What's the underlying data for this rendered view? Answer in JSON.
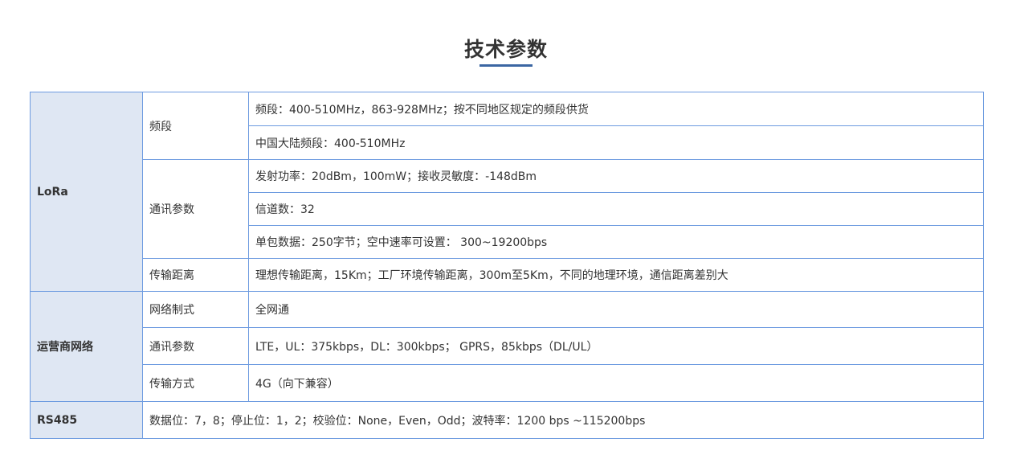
{
  "title": "技术参数",
  "colors": {
    "border": "#6d9be0",
    "category_bg": "#dfe7f3",
    "underline": "#3b66a3"
  },
  "lora": {
    "category": "LoRa",
    "band": {
      "label": "频段",
      "values": [
        "频段：400-510MHz，863-928MHz；按不同地区规定的频段供货",
        "中国大陆频段：400-510MHz"
      ]
    },
    "comm": {
      "label": "通讯参数",
      "values": [
        "发射功率：20dBm，100mW；接收灵敏度：-148dBm",
        "信道数：32",
        "单包数据：250字节；空中速率可设置： 300~19200bps"
      ]
    },
    "distance": {
      "label": "传输距离",
      "value": "理想传输距离，15Km；工厂环境传输距离，300m至5Km，不同的地理环境，通信距离差别大"
    }
  },
  "carrier": {
    "category": "运营商网络",
    "rows": [
      {
        "label": "网络制式",
        "value": "全网通"
      },
      {
        "label": "通讯参数",
        "value": "LTE，UL：375kbps，DL：300kbps； GPRS，85kbps（DL/UL）"
      },
      {
        "label": "传输方式",
        "value": "4G（向下兼容）"
      }
    ]
  },
  "rs485": {
    "category": "RS485",
    "value": "数据位：7，8；停止位：1，2；校验位：None，Even，Odd；波特率：1200 bps ~115200bps"
  }
}
